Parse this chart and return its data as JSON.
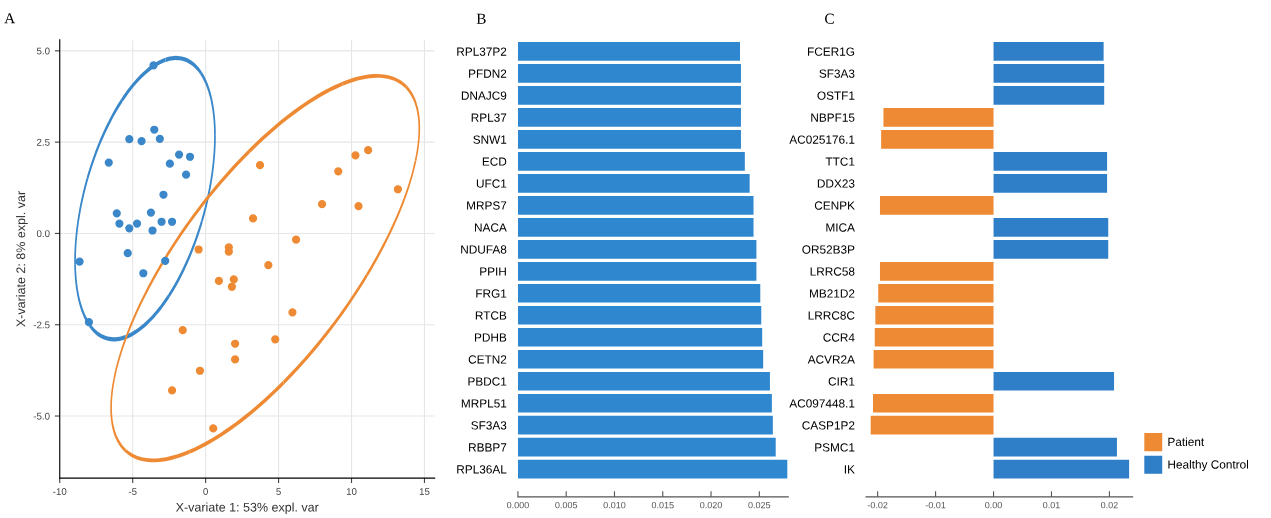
{
  "chart_data": [
    {
      "type": "scatter",
      "xlabel": "X-variate 1: 53% expl. var",
      "ylabel": "X-variate 2: 8% expl. var",
      "annotations": [
        "A"
      ],
      "xlim": [
        -10,
        15.7
      ],
      "ylim": [
        -6.7,
        5.3
      ],
      "xticks": [
        -10,
        -5,
        0,
        5,
        10,
        15
      ],
      "yticks": [
        {
          "value": -5,
          "label": "-5.0"
        },
        {
          "value": -2.5,
          "label": "-2.5"
        },
        {
          "value": 0,
          "label": "0.0"
        },
        {
          "value": 2.5,
          "label": "2.5"
        },
        {
          "value": 5,
          "label": "5.0"
        }
      ],
      "grid": true,
      "marker": "circle",
      "series": [
        {
          "color": "#3a87c9",
          "x": [
            -3.57,
            -5.23,
            -4.39,
            -3.52,
            -3.14,
            -6.64,
            -2.45,
            -1.82,
            -1.07,
            -1.34,
            -2.89,
            -6.09,
            -5.91,
            -5.23,
            -4.7,
            -3.75,
            -3.64,
            -3.02,
            -2.3,
            -5.34,
            -4.27,
            -2.77,
            -8.64,
            -8.0
          ],
          "values": [
            4.6,
            2.58,
            2.53,
            2.84,
            2.59,
            1.94,
            1.91,
            2.16,
            2.1,
            1.61,
            1.06,
            0.55,
            0.27,
            0.14,
            0.27,
            0.57,
            0.08,
            0.32,
            0.32,
            -0.54,
            -1.09,
            -0.75,
            -0.77,
            -2.43
          ]
        },
        {
          "color": "#ee8a33",
          "x": [
            3.73,
            11.14,
            10.27,
            9.09,
            13.18,
            7.98,
            10.48,
            3.25,
            6.2,
            -0.48,
            1.59,
            1.59,
            4.3,
            0.91,
            1.93,
            1.8,
            5.95,
            -1.57,
            4.77,
            2.02,
            2.02,
            -0.39,
            -2.3,
            0.52
          ],
          "values": [
            1.87,
            2.28,
            2.14,
            1.7,
            1.21,
            0.8,
            0.75,
            0.41,
            -0.17,
            -0.44,
            -0.38,
            -0.5,
            -0.87,
            -1.3,
            -1.26,
            -1.46,
            -2.16,
            -2.65,
            -2.9,
            -3.02,
            -3.45,
            -3.76,
            -4.3,
            -5.34
          ]
        }
      ]
    },
    {
      "type": "bar",
      "orientation": "horizontal",
      "annotations": [
        "B"
      ],
      "xlim": [
        0,
        0.028
      ],
      "xticks": [
        {
          "value": 0,
          "label": "0.000"
        },
        0.005,
        {
          "value": 0.01,
          "label": "0.010"
        },
        0.015,
        {
          "value": 0.02,
          "label": "0.020"
        },
        0.025
      ],
      "categories": [
        "RPL37P2",
        "PFDN2",
        "DNAJC9",
        "RPL37",
        "SNW1",
        "ECD",
        "UFC1",
        "MRPS7",
        "NACA",
        "NDUFA8",
        "PPIH",
        "FRG1",
        "RTCB",
        "PDHB",
        "CETN2",
        "PBDC1",
        "MRPL51",
        "SF3A3",
        "RBBP7",
        "RPL36AL"
      ],
      "series": [
        {
          "color": "#2f87cf",
          "values": [
            0.023,
            0.0231,
            0.0231,
            0.0231,
            0.0231,
            0.0235,
            0.024,
            0.0244,
            0.0244,
            0.0247,
            0.0247,
            0.0251,
            0.0252,
            0.0253,
            0.0254,
            0.0261,
            0.0263,
            0.0264,
            0.0267,
            0.0279
          ]
        }
      ]
    },
    {
      "type": "bar",
      "orientation": "horizontal",
      "stacked": true,
      "annotations": [
        "C"
      ],
      "legend": "bottom right",
      "xlim": [
        -0.022,
        0.024
      ],
      "xticks": [
        -0.02,
        -0.01,
        {
          "value": 0,
          "label": "0.00"
        },
        0.01,
        0.02
      ],
      "categories": [
        "FCER1G",
        "SF3A3",
        "OSTF1",
        "NBPF15",
        "AC025176.1",
        "TTC1",
        "DDX23",
        "CENPK",
        "MICA",
        "OR52B3P",
        "LRRC58",
        "MB21D2",
        "LRRC8C",
        "CCR4",
        "ACVR2A",
        "CIR1",
        "AC097448.1",
        "CASP1P2",
        "PSMC1",
        "IK"
      ],
      "series": [
        {
          "name": "Patient",
          "color": "#ee8a33",
          "values": [
            null,
            null,
            null,
            -0.019,
            -0.0194,
            null,
            null,
            -0.0196,
            null,
            null,
            -0.0196,
            -0.0199,
            -0.0204,
            -0.0205,
            -0.0207,
            null,
            -0.0208,
            -0.0212,
            null,
            null
          ]
        },
        {
          "name": "Healthy Control",
          "color": "#2f7fc8",
          "values": [
            0.019,
            0.0191,
            0.0191,
            null,
            null,
            0.0196,
            0.0196,
            null,
            0.0198,
            0.0198,
            null,
            null,
            null,
            null,
            null,
            0.0208,
            null,
            null,
            0.0213,
            0.0234
          ]
        }
      ]
    }
  ]
}
